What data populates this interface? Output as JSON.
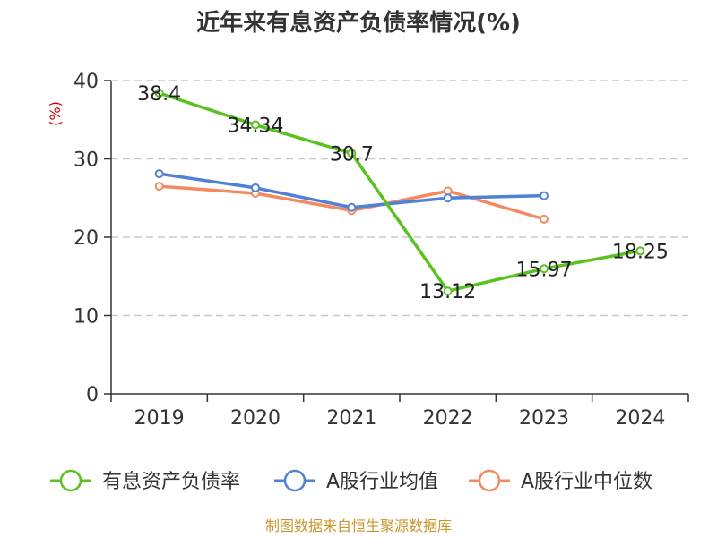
{
  "chart_data": {
    "type": "line",
    "title": "近年来有息资产负债率情况(%)",
    "ylabel": "(%)",
    "xlabel": "",
    "categories": [
      "2019",
      "2020",
      "2021",
      "2022",
      "2023",
      "2024"
    ],
    "ylim": [
      0,
      40
    ],
    "yticks": [
      0,
      10,
      20,
      30,
      40
    ],
    "grid": true,
    "legend_position": "bottom",
    "series": [
      {
        "name": "有息资产负债率",
        "color": "#5ac21e",
        "values": [
          38.4,
          34.34,
          30.7,
          13.12,
          15.97,
          18.25
        ],
        "labels": [
          "38.4",
          "34.34",
          "30.7",
          "13.12",
          "15.97",
          "18.25"
        ]
      },
      {
        "name": "A股行业均值",
        "color": "#4f81d6",
        "values": [
          28.1,
          26.3,
          23.8,
          25.0,
          25.3,
          null
        ],
        "labels": []
      },
      {
        "name": "A股行业中位数",
        "color": "#f4895f",
        "values": [
          26.5,
          25.6,
          23.4,
          25.9,
          22.3,
          null
        ],
        "labels": []
      }
    ],
    "source": "制图数据来自恒生聚源数据库"
  }
}
